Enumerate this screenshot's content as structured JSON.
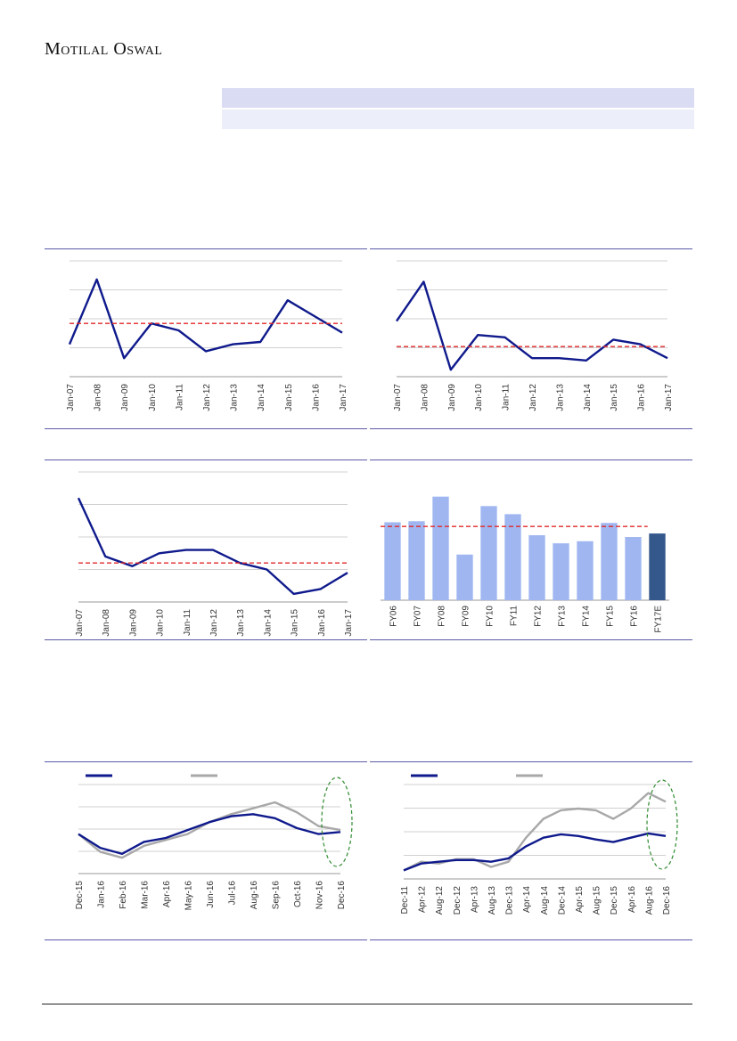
{
  "brand": {
    "logo_text": "Motilal Oswal"
  },
  "colors": {
    "primary_line": "#0f1a8c",
    "secondary_line": "#a8a8a8",
    "average_line": "#e0282a",
    "bar_fill": "#9fb6f0",
    "bar_highlight": "#34588c",
    "rule": "#5a5aa8",
    "ellipse": "#2f8a2f"
  },
  "chart_data": [
    {
      "id": "chart1",
      "type": "line",
      "x": [
        "Jan-07",
        "Jan-08",
        "Jan-09",
        "Jan-10",
        "Jan-11",
        "Jan-12",
        "Jan-13",
        "Jan-14",
        "Jan-15",
        "Jan-16",
        "Jan-17"
      ],
      "series": [
        {
          "values": [
            1.4,
            4.2,
            0.8,
            2.3,
            2.0,
            1.1,
            1.4,
            1.5,
            3.3,
            2.6,
            1.9
          ]
        }
      ],
      "average": 2.3,
      "ylim": [
        0,
        5
      ],
      "grid": true
    },
    {
      "id": "chart2",
      "type": "line",
      "x": [
        "Jan-07",
        "Jan-08",
        "Jan-09",
        "Jan-10",
        "Jan-11",
        "Jan-12",
        "Jan-13",
        "Jan-14",
        "Jan-15",
        "Jan-16",
        "Jan-17"
      ],
      "series": [
        {
          "values": [
            2.4,
            4.1,
            0.3,
            1.8,
            1.7,
            0.8,
            0.8,
            0.7,
            1.6,
            1.4,
            0.8
          ]
        }
      ],
      "average": 1.3,
      "ylim": [
        0,
        5
      ],
      "grid": true
    },
    {
      "id": "chart3",
      "type": "line",
      "x": [
        "Jan-07",
        "Jan-08",
        "Jan-09",
        "Jan-10",
        "Jan-11",
        "Jan-12",
        "Jan-13",
        "Jan-14",
        "Jan-15",
        "Jan-16",
        "Jan-17"
      ],
      "series": [
        {
          "values": [
            3.2,
            1.4,
            1.1,
            1.5,
            1.6,
            1.6,
            1.2,
            1.0,
            0.25,
            0.4,
            0.9
          ]
        }
      ],
      "average": 1.2,
      "ylim": [
        0,
        4
      ],
      "grid": true
    },
    {
      "id": "chart4",
      "type": "bar",
      "categories": [
        "FY06",
        "FY07",
        "FY08",
        "FY09",
        "FY10",
        "FY11",
        "FY12",
        "FY13",
        "FY14",
        "FY15",
        "FY16",
        "FY17E"
      ],
      "values": [
        22.2,
        22.5,
        29.5,
        13.0,
        26.8,
        24.5,
        18.5,
        16.2,
        16.8,
        22.0,
        18.0,
        19.0
      ],
      "average": 21.0,
      "ylim": [
        0,
        35
      ],
      "grid": false
    },
    {
      "id": "chart5",
      "type": "line",
      "x": [
        "Dec-15",
        "Jan-16",
        "Feb-16",
        "Mar-16",
        "Apr-16",
        "May-16",
        "Jun-16",
        "Jul-16",
        "Aug-16",
        "Sep-16",
        "Oct-16",
        "Nov-16",
        "Dec-16"
      ],
      "series": [
        {
          "values": [
            100,
            93,
            90,
            96,
            98,
            102,
            106,
            109,
            110,
            108,
            103,
            100,
            101
          ]
        },
        {
          "values": [
            100,
            91,
            88,
            94,
            97,
            100,
            106,
            110,
            113,
            116,
            111,
            104,
            102
          ]
        }
      ],
      "ylim": [
        80,
        125
      ],
      "grid": true
    },
    {
      "id": "chart6",
      "type": "line",
      "x": [
        "Dec-11",
        "Apr-12",
        "Aug-12",
        "Dec-12",
        "Apr-13",
        "Aug-13",
        "Dec-13",
        "Apr-14",
        "Aug-14",
        "Dec-14",
        "Apr-15",
        "Aug-15",
        "Dec-15",
        "Apr-16",
        "Aug-16",
        "Dec-16"
      ],
      "series": [
        {
          "values": [
            100,
            108,
            110,
            112,
            112,
            110,
            114,
            128,
            138,
            142,
            140,
            136,
            133,
            138,
            143,
            140
          ]
        },
        {
          "values": [
            100,
            110,
            108,
            113,
            113,
            104,
            110,
            138,
            160,
            170,
            172,
            170,
            160,
            172,
            190,
            180
          ]
        }
      ],
      "ylim": [
        90,
        200
      ],
      "grid": true
    }
  ]
}
